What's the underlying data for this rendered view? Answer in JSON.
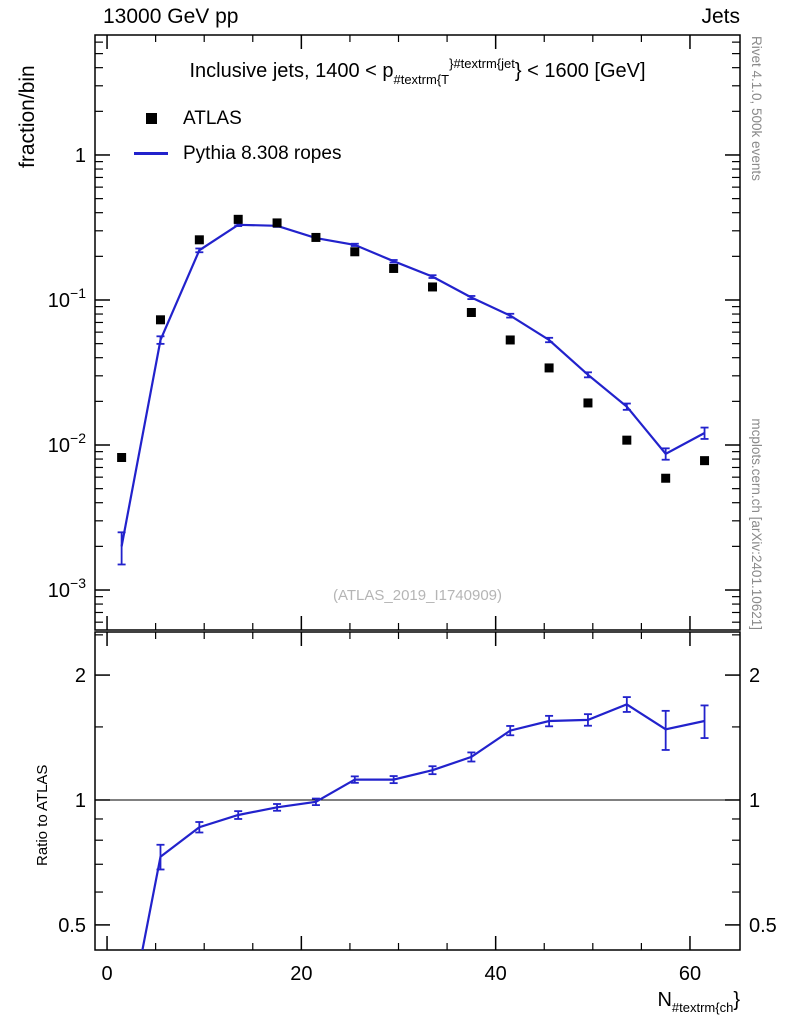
{
  "header": {
    "left": "13000 GeV pp",
    "right": "Jets"
  },
  "title_parts": [
    {
      "k": "n",
      "t": "Inclusive jets, 1400 < p"
    },
    {
      "k": "sub",
      "t": "#textrm{T"
    },
    {
      "k": "sup",
      "t": "}#textrm{jet"
    },
    {
      "k": "n",
      "t": "} < 1600 [GeV]"
    }
  ],
  "legend": [
    {
      "marker": "square",
      "label": "ATLAS"
    },
    {
      "marker": "line",
      "label": "Pythia 8.308 ropes"
    }
  ],
  "ylabel": "fraction/bin",
  "ratio_ylabel": "Ratio to ATLAS",
  "xlabel_parts": [
    {
      "k": "n",
      "t": "N"
    },
    {
      "k": "sub",
      "t": "#textrm{ch"
    },
    {
      "k": "n",
      "t": "}"
    }
  ],
  "watermark": "(ATLAS_2019_I1740909)",
  "side_text_top": "Rivet 4.1.0,  500k events",
  "side_text_bottom": "mcplots.cern.ch [arXiv:2401.10621]",
  "colors": {
    "mc_line": "#2222cc",
    "data_marker": "#000000",
    "side_text": "#8a8a8a",
    "watermark": "#b5b5b5",
    "axis": "#000000"
  },
  "chart_data": {
    "type": "line",
    "x": [
      1.5,
      5.5,
      9.5,
      13.5,
      17.5,
      21.5,
      25.5,
      29.5,
      33.5,
      37.5,
      41.5,
      45.5,
      49.5,
      53.5,
      57.5,
      61.5
    ],
    "series": [
      {
        "name": "ATLAS",
        "style": "squares",
        "values": [
          0.0082,
          0.073,
          0.26,
          0.36,
          0.34,
          0.27,
          0.215,
          0.165,
          0.123,
          0.082,
          0.053,
          0.034,
          0.0195,
          0.0108,
          0.0059,
          0.0078
        ]
      },
      {
        "name": "Pythia 8.308 ropes",
        "style": "line_with_errors",
        "values": [
          0.002,
          0.053,
          0.22,
          0.33,
          0.325,
          0.267,
          0.24,
          0.185,
          0.145,
          0.104,
          0.078,
          0.053,
          0.0305,
          0.0184,
          0.0087,
          0.0121
        ],
        "rel_err": [
          0.25,
          0.06,
          0.03,
          0.02,
          0.018,
          0.018,
          0.018,
          0.02,
          0.022,
          0.025,
          0.03,
          0.035,
          0.04,
          0.05,
          0.09,
          0.09
        ]
      }
    ],
    "ratio": {
      "name": "Pythia / ATLAS",
      "values": [
        0.24,
        0.73,
        0.86,
        0.92,
        0.96,
        0.99,
        1.12,
        1.12,
        1.18,
        1.27,
        1.47,
        1.55,
        1.56,
        1.7,
        1.48,
        1.55
      ],
      "abs_err": [
        0.08,
        0.05,
        0.025,
        0.02,
        0.018,
        0.018,
        0.02,
        0.022,
        0.026,
        0.032,
        0.038,
        0.045,
        0.05,
        0.07,
        0.16,
        0.14
      ]
    },
    "main_axis": {
      "scale": "log",
      "label": "fraction/bin",
      "ticks": [
        {
          "v": 1,
          "l": "1"
        },
        {
          "v": 0.1,
          "l": "10^-1"
        },
        {
          "v": 0.01,
          "l": "10^-2"
        },
        {
          "v": 0.001,
          "l": "10^-3"
        }
      ],
      "range": [
        0.00053,
        6.72
      ]
    },
    "ratio_axis": {
      "scale": "log",
      "label": "Ratio to ATLAS",
      "ticks": [
        {
          "v": 2,
          "l": "2"
        },
        {
          "v": 1,
          "l": "1"
        },
        {
          "v": 0.5,
          "l": "0.5"
        }
      ],
      "minor": [
        0.6,
        0.7,
        0.8,
        0.9,
        1.5,
        2.5
      ],
      "range": [
        0.435,
        2.54
      ],
      "ref_line": 1
    },
    "x_axis": {
      "label": "N_#textrm{ch}}",
      "ticks": [
        0,
        20,
        40,
        60
      ],
      "minor_step": 5,
      "range": [
        -1.24,
        65.15
      ]
    }
  }
}
